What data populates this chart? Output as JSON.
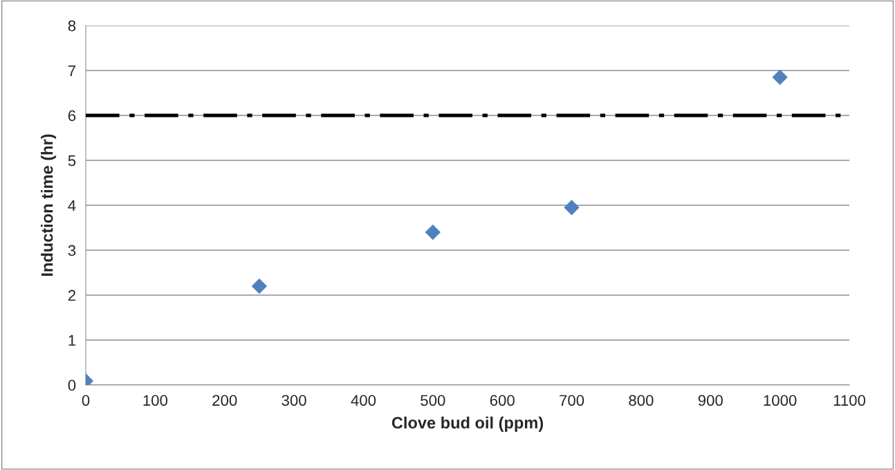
{
  "chart_data": {
    "type": "scatter",
    "xlabel": "Clove bud oil (ppm)",
    "ylabel": "Induction time (hr)",
    "x": [
      0,
      250,
      500,
      700,
      1000
    ],
    "series": [
      {
        "color": "#4f81bd",
        "values": [
          0.09,
          2.2,
          3.4,
          3.95,
          6.85
        ]
      }
    ],
    "marker": "diamond",
    "xlim": [
      0,
      1100
    ],
    "xticks": [
      0,
      100,
      200,
      300,
      400,
      500,
      600,
      700,
      800,
      900,
      1000,
      1100
    ],
    "ylim": [
      0,
      8
    ],
    "yticks": [
      0,
      1,
      2,
      3,
      4,
      5,
      6,
      7,
      8
    ],
    "grid": "y",
    "ref_lines": [
      {
        "axis": "y",
        "value": 6,
        "color": "#000000",
        "line_style": "dashed"
      }
    ]
  }
}
